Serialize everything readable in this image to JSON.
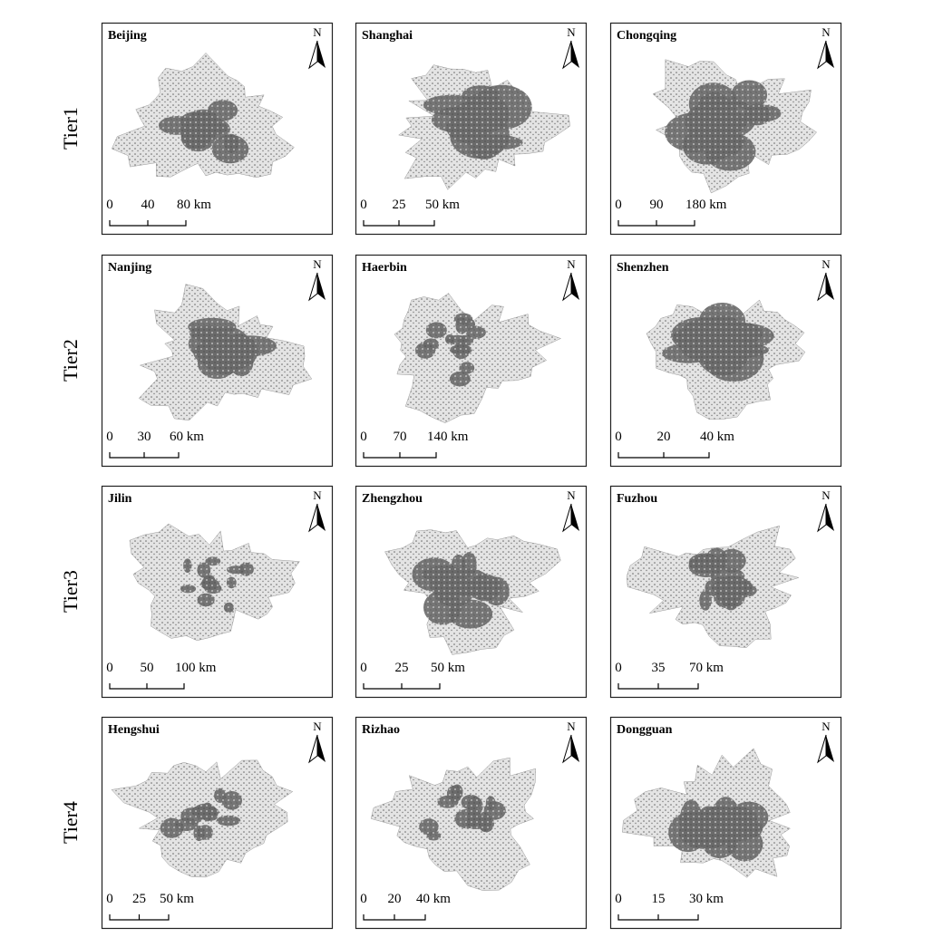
{
  "north_label": "N",
  "rows": [
    {
      "tier": "Tier1",
      "panels": [
        {
          "city": "Beijing",
          "scale": [
            "0",
            "40",
            "80 km"
          ]
        },
        {
          "city": "Shanghai",
          "scale": [
            "0",
            "25",
            "50 km"
          ]
        },
        {
          "city": "Chongqing",
          "scale": [
            "0",
            "90",
            "180 km"
          ]
        }
      ]
    },
    {
      "tier": "Tier2",
      "panels": [
        {
          "city": "Nanjing",
          "scale": [
            "0",
            "30",
            "60 km"
          ]
        },
        {
          "city": "Haerbin",
          "scale": [
            "0",
            "70",
            "140 km"
          ]
        },
        {
          "city": "Shenzhen",
          "scale": [
            "0",
            "20",
            "40 km"
          ]
        }
      ]
    },
    {
      "tier": "Tier3",
      "panels": [
        {
          "city": "Jilin",
          "scale": [
            "0",
            "50",
            "100 km"
          ]
        },
        {
          "city": "Zhengzhou",
          "scale": [
            "0",
            "25",
            "50 km"
          ]
        },
        {
          "city": "Fuzhou",
          "scale": [
            "0",
            "35",
            "70 km"
          ]
        }
      ]
    },
    {
      "tier": "Tier4",
      "panels": [
        {
          "city": "Hengshui",
          "scale": [
            "0",
            "25",
            "50 km"
          ]
        },
        {
          "city": "Rizhao",
          "scale": [
            "0",
            "20",
            "40 km"
          ]
        },
        {
          "city": "Dongguan",
          "scale": [
            "0",
            "15",
            "30 km"
          ]
        }
      ]
    }
  ]
}
